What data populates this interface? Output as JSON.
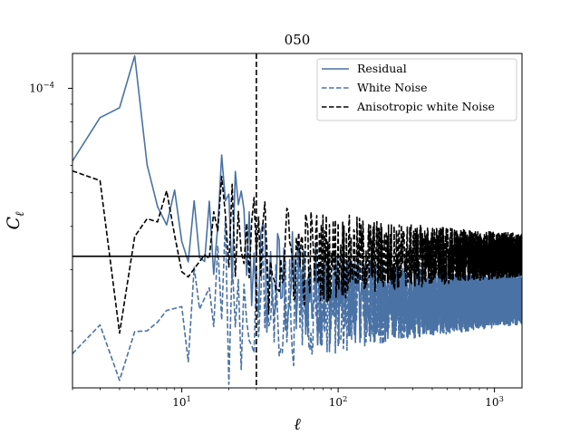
{
  "chart_data": {
    "type": "line",
    "title": "050",
    "xlabel": "ℓ",
    "ylabel": "C_ℓ",
    "xscale": "log",
    "yscale": "log",
    "xlim": [
      2,
      1500
    ],
    "ylim": [
      1.37e-05,
      0.000126
    ],
    "grid": false,
    "x_ticks": [
      {
        "value": 10,
        "base": "10",
        "exp": "1"
      },
      {
        "value": 100,
        "base": "10",
        "exp": "2"
      },
      {
        "value": 1000,
        "base": "10",
        "exp": "3"
      }
    ],
    "y_ticks": [
      {
        "value": 0.0001,
        "base": "10",
        "exp": "−4"
      }
    ],
    "legend": {
      "position": "upper right",
      "entries": [
        {
          "label": "Residual",
          "color": "#4a72a4",
          "style": "solid"
        },
        {
          "label": "White Noise",
          "color": "#4a72a4",
          "style": "dashed"
        },
        {
          "label": "Anisotropic white Noise",
          "color": "#000000",
          "style": "dashed"
        }
      ]
    },
    "reference_lines": [
      {
        "orientation": "horizontal",
        "value": 3.28e-05,
        "color": "#000000",
        "style": "solid"
      },
      {
        "orientation": "vertical",
        "value": 30,
        "color": "#000000",
        "style": "dashed"
      }
    ],
    "series": [
      {
        "name": "Residual",
        "color": "#4a72a4",
        "style": "solid",
        "points": [
          [
            2,
            6.17e-05
          ],
          [
            3,
            8.23e-05
          ],
          [
            4,
            8.79e-05
          ],
          [
            5,
            0.000124
          ],
          [
            6,
            6.02e-05
          ],
          [
            7,
            4.56e-05
          ],
          [
            8,
            4.04e-05
          ],
          [
            9,
            5.09e-05
          ],
          [
            10,
            3.62e-05
          ],
          [
            11,
            3.16e-05
          ],
          [
            12,
            4.74e-05
          ],
          [
            13,
            3.25e-05
          ],
          [
            14,
            3.17e-05
          ],
          [
            15,
            3.92e-05
          ],
          [
            17,
            3.44e-05
          ],
          [
            20,
            4.1e-05
          ],
          [
            25,
            3.51e-05
          ],
          [
            30,
            3.02e-05
          ],
          [
            40,
            2.66e-05
          ],
          [
            60,
            2.63e-05
          ],
          [
            100,
            2.52e-05
          ],
          [
            200,
            2.43e-05
          ],
          [
            400,
            2.42e-05
          ],
          [
            700,
            2.45e-05
          ],
          [
            1000,
            2.47e-05
          ],
          [
            1500,
            2.5e-05
          ]
        ]
      },
      {
        "name": "White Noise",
        "color": "#4a72a4",
        "style": "dashed",
        "points": [
          [
            2,
            1.72e-05
          ],
          [
            3,
            2.08e-05
          ],
          [
            4,
            1.44e-05
          ],
          [
            5,
            1.99e-05
          ],
          [
            6,
            2e-05
          ],
          [
            7,
            2.12e-05
          ],
          [
            8,
            2.29e-05
          ],
          [
            9,
            2.32e-05
          ],
          [
            10,
            2.35e-05
          ],
          [
            11,
            1.63e-05
          ],
          [
            12,
            3.05e-05
          ],
          [
            13,
            2.31e-05
          ],
          [
            15,
            2.55e-05
          ],
          [
            20,
            2.41e-05
          ],
          [
            30,
            2.37e-05
          ],
          [
            50,
            2.36e-05
          ],
          [
            100,
            2.38e-05
          ],
          [
            200,
            2.39e-05
          ],
          [
            500,
            2.4e-05
          ],
          [
            1000,
            2.42e-05
          ],
          [
            1500,
            2.44e-05
          ]
        ]
      },
      {
        "name": "Anisotropic white Noise",
        "color": "#000000",
        "style": "dashed",
        "points": [
          [
            2,
            5.78e-05
          ],
          [
            3,
            5.42e-05
          ],
          [
            4,
            1.97e-05
          ],
          [
            5,
            3.74e-05
          ],
          [
            6,
            4.21e-05
          ],
          [
            7,
            4.12e-05
          ],
          [
            8,
            5.07e-05
          ],
          [
            9,
            3.77e-05
          ],
          [
            10,
            2.96e-05
          ],
          [
            11,
            2.86e-05
          ],
          [
            12,
            3.02e-05
          ],
          [
            14,
            3.31e-05
          ],
          [
            17,
            3.53e-05
          ],
          [
            20,
            3.36e-05
          ],
          [
            25,
            3.29e-05
          ],
          [
            30,
            3.31e-05
          ],
          [
            40,
            3.3e-05
          ],
          [
            60,
            3.28e-05
          ],
          [
            100,
            3.27e-05
          ],
          [
            200,
            3.28e-05
          ],
          [
            500,
            3.29e-05
          ],
          [
            1000,
            3.3e-05
          ],
          [
            1500,
            3.31e-05
          ]
        ]
      }
    ]
  }
}
